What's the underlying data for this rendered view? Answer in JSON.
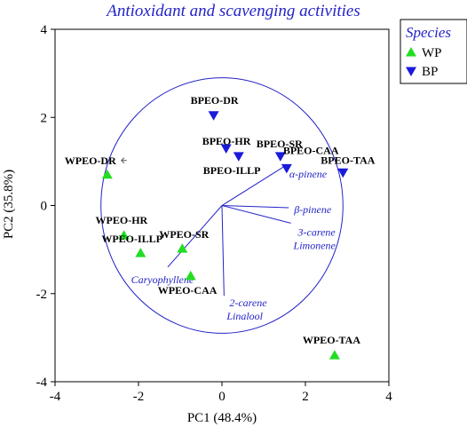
{
  "chart_data": {
    "type": "scatter",
    "title": "Antioxidant and scavenging activities",
    "xlabel": "PC1 (48.4%)",
    "ylabel": "PC2 (35.8%)",
    "xlim": [
      -4,
      4
    ],
    "ylim": [
      -4,
      4
    ],
    "xticks": [
      "-4",
      "-2",
      "0",
      "2",
      "4"
    ],
    "yticks": [
      "4",
      "2",
      "0",
      "-2",
      "-4"
    ],
    "correlation_circle_radius": 2.9,
    "legend": {
      "title": "Species",
      "placement": "top-right",
      "entries": [
        {
          "label": "WP",
          "marker": "triangle-up",
          "color": "#22dd22"
        },
        {
          "label": "BP",
          "marker": "triangle-down",
          "color": "#1a1adc"
        }
      ]
    },
    "series": [
      {
        "name": "WP",
        "marker": "triangle-up",
        "color": "#22dd22",
        "points": [
          {
            "label": "WPEO-DR",
            "x": -2.75,
            "y": 0.7
          },
          {
            "label": "WPEO-HR",
            "x": -2.35,
            "y": -0.68
          },
          {
            "label": "WPEO-ILLP",
            "x": -1.95,
            "y": -1.08
          },
          {
            "label": "WPEO-SR",
            "x": -0.95,
            "y": -0.98
          },
          {
            "label": "WPEO-CAA",
            "x": -0.75,
            "y": -1.6
          },
          {
            "label": "WPEO-TAA",
            "x": 2.7,
            "y": -3.4
          }
        ]
      },
      {
        "name": "BP",
        "marker": "triangle-down",
        "color": "#1a1adc",
        "points": [
          {
            "label": "BPEO-DR",
            "x": -0.2,
            "y": 2.05
          },
          {
            "label": "BPEO-HR",
            "x": 0.1,
            "y": 1.3
          },
          {
            "label": "BPEO-ILLP",
            "x": 0.4,
            "y": 1.12
          },
          {
            "label": "BPEO-SR",
            "x": 1.4,
            "y": 1.12
          },
          {
            "label": "BPEO-CAA",
            "x": 1.55,
            "y": 0.85
          },
          {
            "label": "BPEO-TAA",
            "x": 2.9,
            "y": 0.75
          }
        ]
      }
    ],
    "loadings": [
      {
        "label": "α-pinene",
        "x": 1.55,
        "y": 0.92
      },
      {
        "label": "β-pinene",
        "x": 1.6,
        "y": -0.05
      },
      {
        "label": "3-carene",
        "x": 1.65,
        "y": -0.4
      },
      {
        "label": "Limonene",
        "x": 1.65,
        "y": -0.4
      },
      {
        "label": "2-carene",
        "x": 0.05,
        "y": -2.05
      },
      {
        "label": "Linalool",
        "x": 0.05,
        "y": -2.05
      },
      {
        "label": "Caryophyllene",
        "x": -1.3,
        "y": -1.4
      }
    ]
  }
}
